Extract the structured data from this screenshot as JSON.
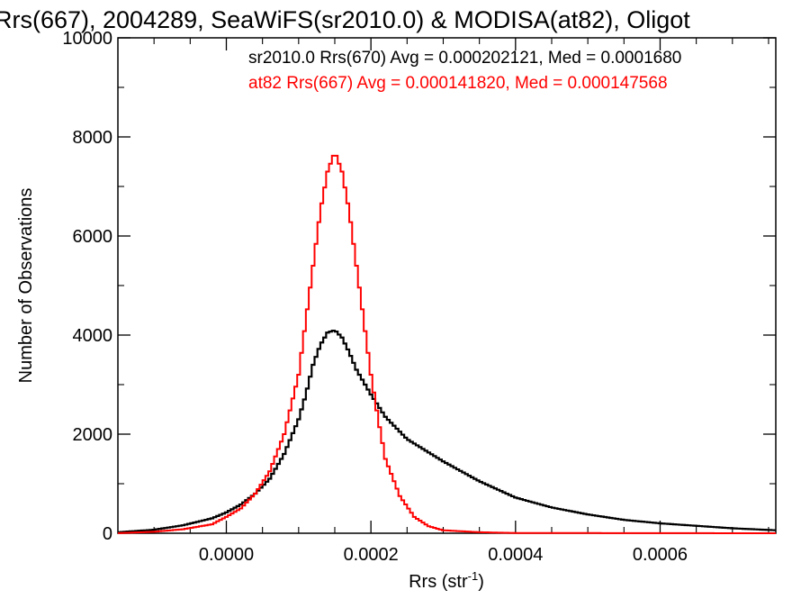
{
  "chart_data": {
    "type": "line",
    "title": "Rrs(667), 2004289, SeaWiFS(sr2010.0) & MODISA(at82), Oligot",
    "xlabel": "Rrs (str",
    "xlabel_sup": "-1",
    "xlabel_close": ")",
    "ylabel": "Number of Observations",
    "xlim": [
      -0.00015,
      0.00076
    ],
    "ylim": [
      0,
      10000
    ],
    "x_ticks": [
      0.0,
      0.0002,
      0.0004,
      0.0006
    ],
    "x_tick_labels": [
      "0.0000",
      "0.0002",
      "0.0004",
      "0.0006"
    ],
    "y_ticks": [
      0,
      2000,
      4000,
      6000,
      8000,
      10000
    ],
    "y_tick_labels": [
      "0",
      "2000",
      "4000",
      "6000",
      "8000",
      "10000"
    ],
    "grid": false,
    "legend_placement": "top-right",
    "series": [
      {
        "name": "sr2010.0 Rrs(670) Avg = 0.000202121, Med = 0.0001680",
        "color": "#000000",
        "style": "step-histogram",
        "x": [
          -0.00015,
          -0.0001,
          -6e-05,
          -2e-05,
          0.0,
          2e-05,
          4e-05,
          6e-05,
          8e-05,
          0.0001,
          0.00011,
          0.00012,
          0.00013,
          0.00014,
          0.00015,
          0.00016,
          0.00017,
          0.00018,
          0.0002,
          0.00022,
          0.00025,
          0.0003,
          0.00035,
          0.0004,
          0.00045,
          0.0005,
          0.00055,
          0.0006,
          0.00065,
          0.0007,
          0.00076
        ],
        "values": [
          20,
          70,
          160,
          300,
          420,
          580,
          800,
          1100,
          1600,
          2300,
          2800,
          3400,
          3800,
          4050,
          4100,
          3950,
          3650,
          3300,
          2800,
          2350,
          1900,
          1450,
          1050,
          720,
          520,
          380,
          270,
          200,
          150,
          100,
          60
        ]
      },
      {
        "name": "at82 Rrs(667) Avg = 0.000141820, Med = 0.000147568",
        "color": "#ff0000",
        "style": "step-histogram",
        "x": [
          -0.00015,
          -0.0001,
          -6e-05,
          -2e-05,
          0.0,
          2e-05,
          4e-05,
          6e-05,
          8e-05,
          0.0001,
          0.00011,
          0.00012,
          0.00013,
          0.00014,
          0.00015,
          0.00016,
          0.00017,
          0.00018,
          0.00019,
          0.0002,
          0.00021,
          0.00022,
          0.00024,
          0.00026,
          0.00028,
          0.0003,
          0.00035,
          0.0004,
          0.00076
        ],
        "values": [
          0,
          30,
          80,
          180,
          330,
          500,
          800,
          1250,
          2000,
          3200,
          4300,
          5400,
          6500,
          7300,
          7700,
          7300,
          6500,
          5400,
          4300,
          3200,
          2300,
          1500,
          750,
          330,
          140,
          60,
          20,
          5,
          0
        ]
      }
    ]
  }
}
